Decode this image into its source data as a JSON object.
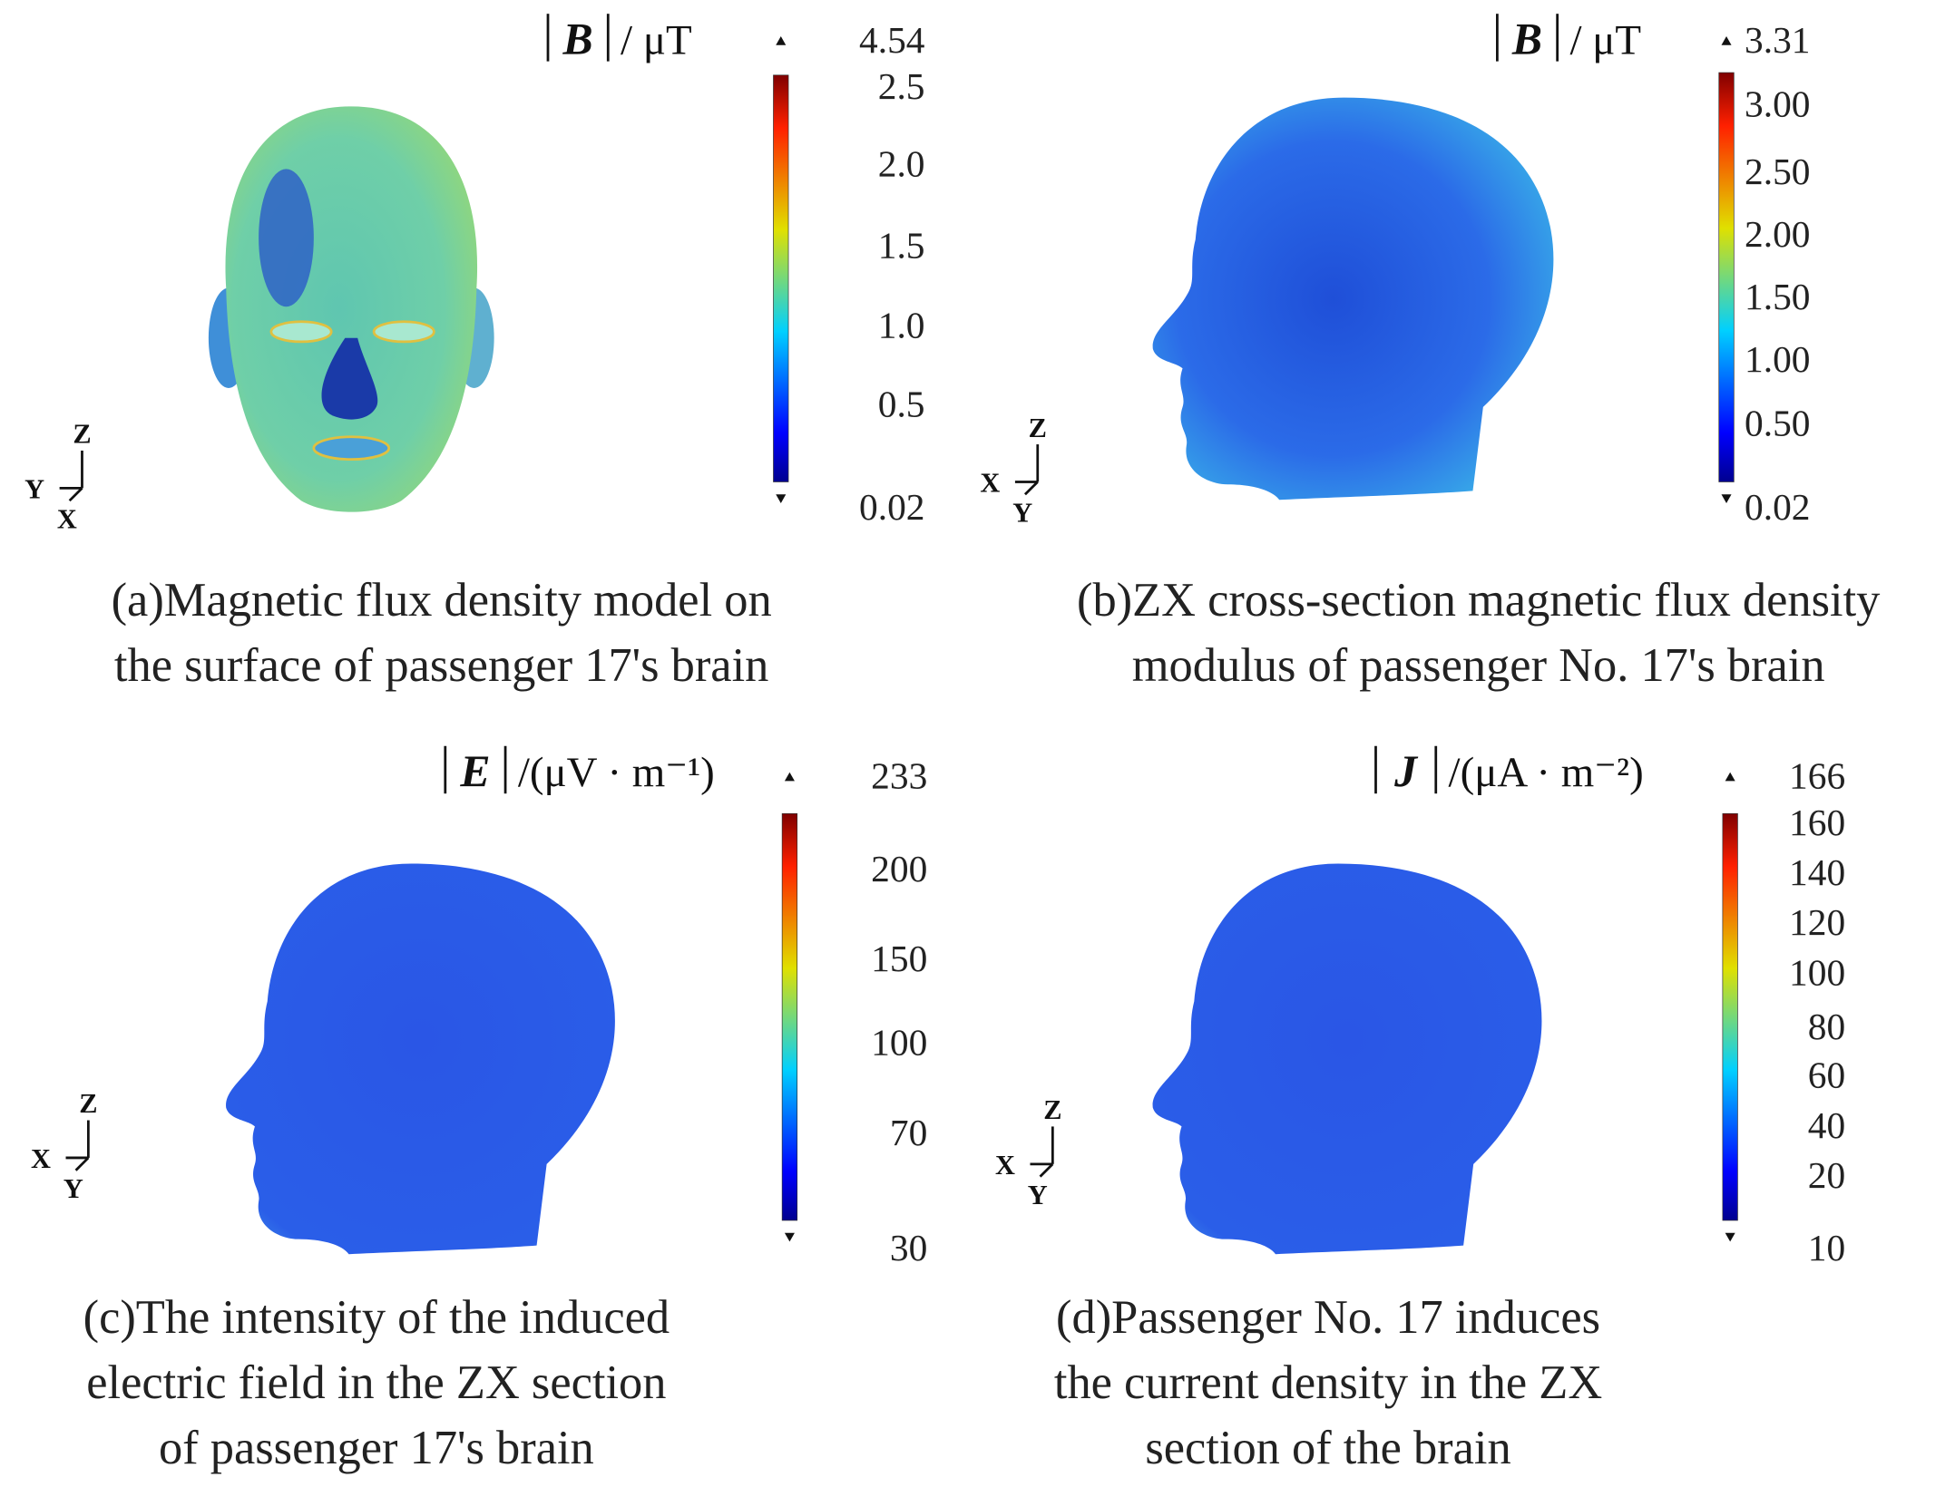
{
  "panels": [
    {
      "colorbar": {
        "symbol": "B",
        "unit": "/ μT",
        "max": "4.54",
        "min": "0.02",
        "ticks": [
          "2.5",
          "2.0",
          "1.5",
          "1.0",
          "0.5"
        ]
      },
      "axes": [
        "Z",
        "Y",
        "X"
      ],
      "caption": [
        "(a)Magnetic flux density model on",
        "the surface of passenger 17's brain"
      ]
    },
    {
      "colorbar": {
        "symbol": "B",
        "unit": "/ μT",
        "max": "3.31",
        "min": "0.02",
        "ticks": [
          "3.00",
          "2.50",
          "2.00",
          "1.50",
          "1.00",
          "0.50"
        ]
      },
      "axes": [
        "Z",
        "X",
        "Y"
      ],
      "caption": [
        "(b)ZX cross-section magnetic flux density",
        "modulus of passenger No. 17's brain"
      ]
    },
    {
      "colorbar": {
        "symbol": "E",
        "unit": "/(μV · m⁻¹)",
        "max": "233",
        "min": "30",
        "ticks": [
          "200",
          "150",
          "100",
          "70"
        ]
      },
      "axes": [
        "Z",
        "X",
        "Y"
      ],
      "caption": [
        "(c)The intensity of the induced",
        "electric field in the ZX section",
        "of passenger 17's brain"
      ]
    },
    {
      "colorbar": {
        "symbol": "J",
        "unit": "/(μA · m⁻²)",
        "max": "166",
        "min": "10",
        "ticks": [
          "160",
          "140",
          "120",
          "100",
          "80",
          "60",
          "40",
          "20"
        ]
      },
      "axes": [
        "Z",
        "X",
        "Y"
      ],
      "caption": [
        "(d)Passenger No. 17 induces",
        "the current density in the ZX",
        "section of the brain"
      ]
    }
  ]
}
